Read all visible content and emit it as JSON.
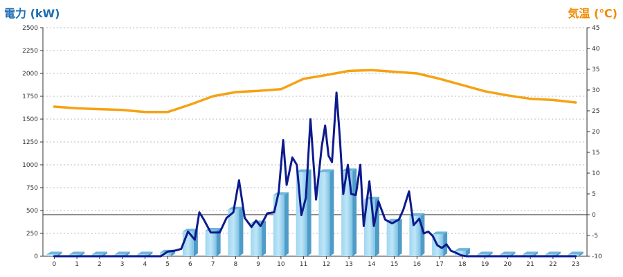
{
  "chart_data": {
    "type": "bar",
    "ylabel": "電力 (kW)",
    "y2label": "気温 (℃)",
    "categories": [
      "0",
      "1",
      "2",
      "3",
      "4",
      "5",
      "6",
      "7",
      "8",
      "9",
      "10",
      "11",
      "12",
      "13",
      "14",
      "15",
      "16",
      "17",
      "18",
      "19",
      "20",
      "21",
      "22",
      "23"
    ],
    "ylim": [
      0,
      2500
    ],
    "y_ticks": [
      0,
      250,
      500,
      750,
      1000,
      1250,
      1500,
      1750,
      2000,
      2250,
      2500
    ],
    "y2lim": [
      -10,
      45
    ],
    "y2_ticks": [
      -10,
      -5,
      0,
      5,
      10,
      15,
      20,
      25,
      30,
      35,
      40,
      45
    ],
    "grid": true,
    "series": [
      {
        "kind": "bar",
        "axis": "left",
        "values": [
          20,
          20,
          20,
          20,
          20,
          40,
          270,
          280,
          510,
          360,
          670,
          920,
          920,
          930,
          620,
          380,
          440,
          240,
          60,
          20,
          20,
          20,
          20,
          20
        ]
      },
      {
        "kind": "line",
        "axis": "left",
        "x": [
          0,
          1,
          2,
          3,
          4,
          4.7,
          5,
          5.3,
          5.6,
          5.9,
          6.2,
          6.4,
          6.6,
          6.9,
          7.3,
          7.6,
          7.9,
          8.15,
          8.4,
          8.7,
          8.9,
          9.1,
          9.4,
          9.7,
          9.9,
          10.1,
          10.25,
          10.5,
          10.7,
          10.9,
          11.1,
          11.3,
          11.55,
          11.8,
          11.95,
          12.1,
          12.25,
          12.45,
          12.6,
          12.75,
          12.95,
          13.1,
          13.3,
          13.5,
          13.65,
          13.9,
          14.1,
          14.3,
          14.6,
          14.9,
          15.2,
          15.4,
          15.65,
          15.85,
          16.1,
          16.3,
          16.5,
          16.7,
          16.9,
          17.1,
          17.3,
          17.5,
          17.7,
          17.95,
          18.2,
          18.4,
          18.6,
          19,
          20,
          21,
          22,
          23
        ],
        "values": [
          0,
          0,
          0,
          0,
          0,
          0,
          50,
          60,
          80,
          270,
          180,
          480,
          400,
          260,
          260,
          420,
          480,
          830,
          420,
          320,
          390,
          330,
          470,
          480,
          700,
          1270,
          780,
          1080,
          1000,
          450,
          640,
          1500,
          620,
          1200,
          1430,
          1100,
          1030,
          1790,
          1290,
          680,
          1000,
          680,
          670,
          1000,
          330,
          820,
          330,
          600,
          400,
          360,
          400,
          510,
          710,
          340,
          410,
          250,
          270,
          220,
          120,
          90,
          130,
          60,
          40,
          10,
          0,
          0,
          0,
          0,
          0,
          0,
          0,
          0
        ]
      },
      {
        "kind": "line",
        "axis": "right",
        "x": [
          0,
          1,
          2,
          3,
          4,
          5,
          6,
          7,
          8,
          9,
          10,
          11,
          12,
          13,
          14,
          15,
          16,
          17,
          18,
          19,
          20,
          21,
          22,
          23
        ],
        "values": [
          26,
          25.6,
          25.4,
          25.2,
          24.7,
          24.7,
          26.5,
          28.5,
          29.5,
          29.8,
          30.2,
          32.7,
          33.6,
          34.6,
          34.8,
          34.4,
          34.0,
          32.7,
          31.2,
          29.7,
          28.7,
          27.9,
          27.6,
          27.0
        ]
      }
    ]
  }
}
